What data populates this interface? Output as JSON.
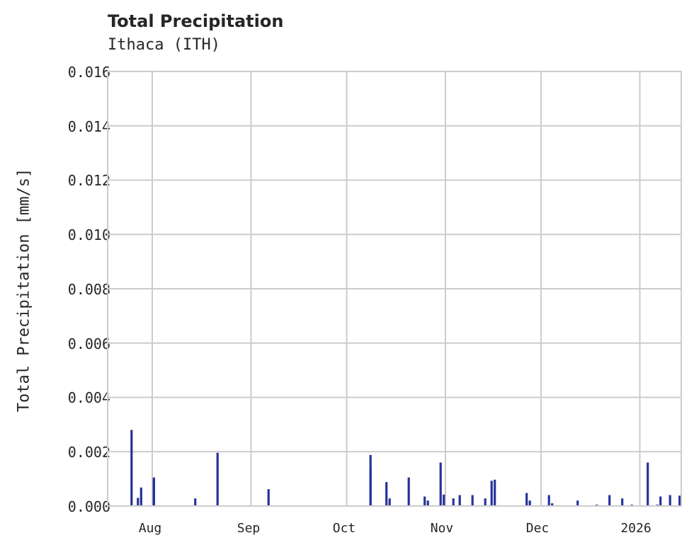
{
  "header": {
    "title": "Total Precipitation",
    "subtitle": "Ithaca (ITH)"
  },
  "axes": {
    "ylabel": "Total Precipitation [mm/s]",
    "yticks": [
      "0.016",
      "0.014",
      "0.012",
      "0.010",
      "0.008",
      "0.006",
      "0.004",
      "0.002",
      "0.000"
    ],
    "xticks": [
      "Aug",
      "Sep",
      "Oct",
      "Nov",
      "Dec",
      "2026"
    ]
  },
  "colors": {
    "series": "#26339a",
    "grid": "#cccccc",
    "frame": "#cccccc",
    "text": "#262626"
  },
  "chart_data": {
    "type": "bar",
    "title": "Total Precipitation",
    "subtitle": "Ithaca (ITH)",
    "xlabel": "",
    "ylabel": "Total Precipitation [mm/s]",
    "ylim": [
      0,
      0.016
    ],
    "xlim": [
      "2025-07-18",
      "2026-01-14"
    ],
    "x_tick_labels": [
      "Aug",
      "Sep",
      "Oct",
      "Nov",
      "Dec",
      "2026"
    ],
    "y_tick_labels": [
      "0.000",
      "0.002",
      "0.004",
      "0.006",
      "0.008",
      "0.010",
      "0.012",
      "0.014",
      "0.016"
    ],
    "grid": true,
    "legend": null,
    "series": [
      {
        "name": "Total Precipitation",
        "color": "#26339a",
        "x": [
          "2025-07-25",
          "2025-07-27",
          "2025-07-28",
          "2025-08-01",
          "2025-08-01",
          "2025-08-14",
          "2025-08-21",
          "2025-09-06",
          "2025-10-08",
          "2025-10-08",
          "2025-10-13",
          "2025-10-14",
          "2025-10-20",
          "2025-10-25",
          "2025-10-26",
          "2025-10-30",
          "2025-10-31",
          "2025-11-03",
          "2025-11-05",
          "2025-11-09",
          "2025-11-13",
          "2025-11-15",
          "2025-11-16",
          "2025-11-26",
          "2025-11-27",
          "2025-12-03",
          "2025-12-04",
          "2025-12-12",
          "2025-12-18",
          "2025-12-22",
          "2025-12-26",
          "2025-12-29",
          "2026-01-03",
          "2026-01-06",
          "2026-01-07",
          "2026-01-10",
          "2026-01-13"
        ],
        "values": [
          0.0028,
          0.0003,
          0.00068,
          0.00098,
          0.00105,
          0.00028,
          0.00196,
          0.00062,
          0.00188,
          0.00135,
          0.00088,
          0.00028,
          0.00105,
          0.00035,
          0.0002,
          0.0016,
          0.00042,
          0.00028,
          0.0004,
          0.0004,
          0.00028,
          0.00093,
          0.00097,
          0.00048,
          0.0002,
          0.0004,
          0.0001,
          0.0002,
          5e-05,
          0.0004,
          0.00028,
          5e-05,
          0.0016,
          5e-05,
          0.00035,
          0.0004,
          0.00038
        ]
      }
    ]
  }
}
